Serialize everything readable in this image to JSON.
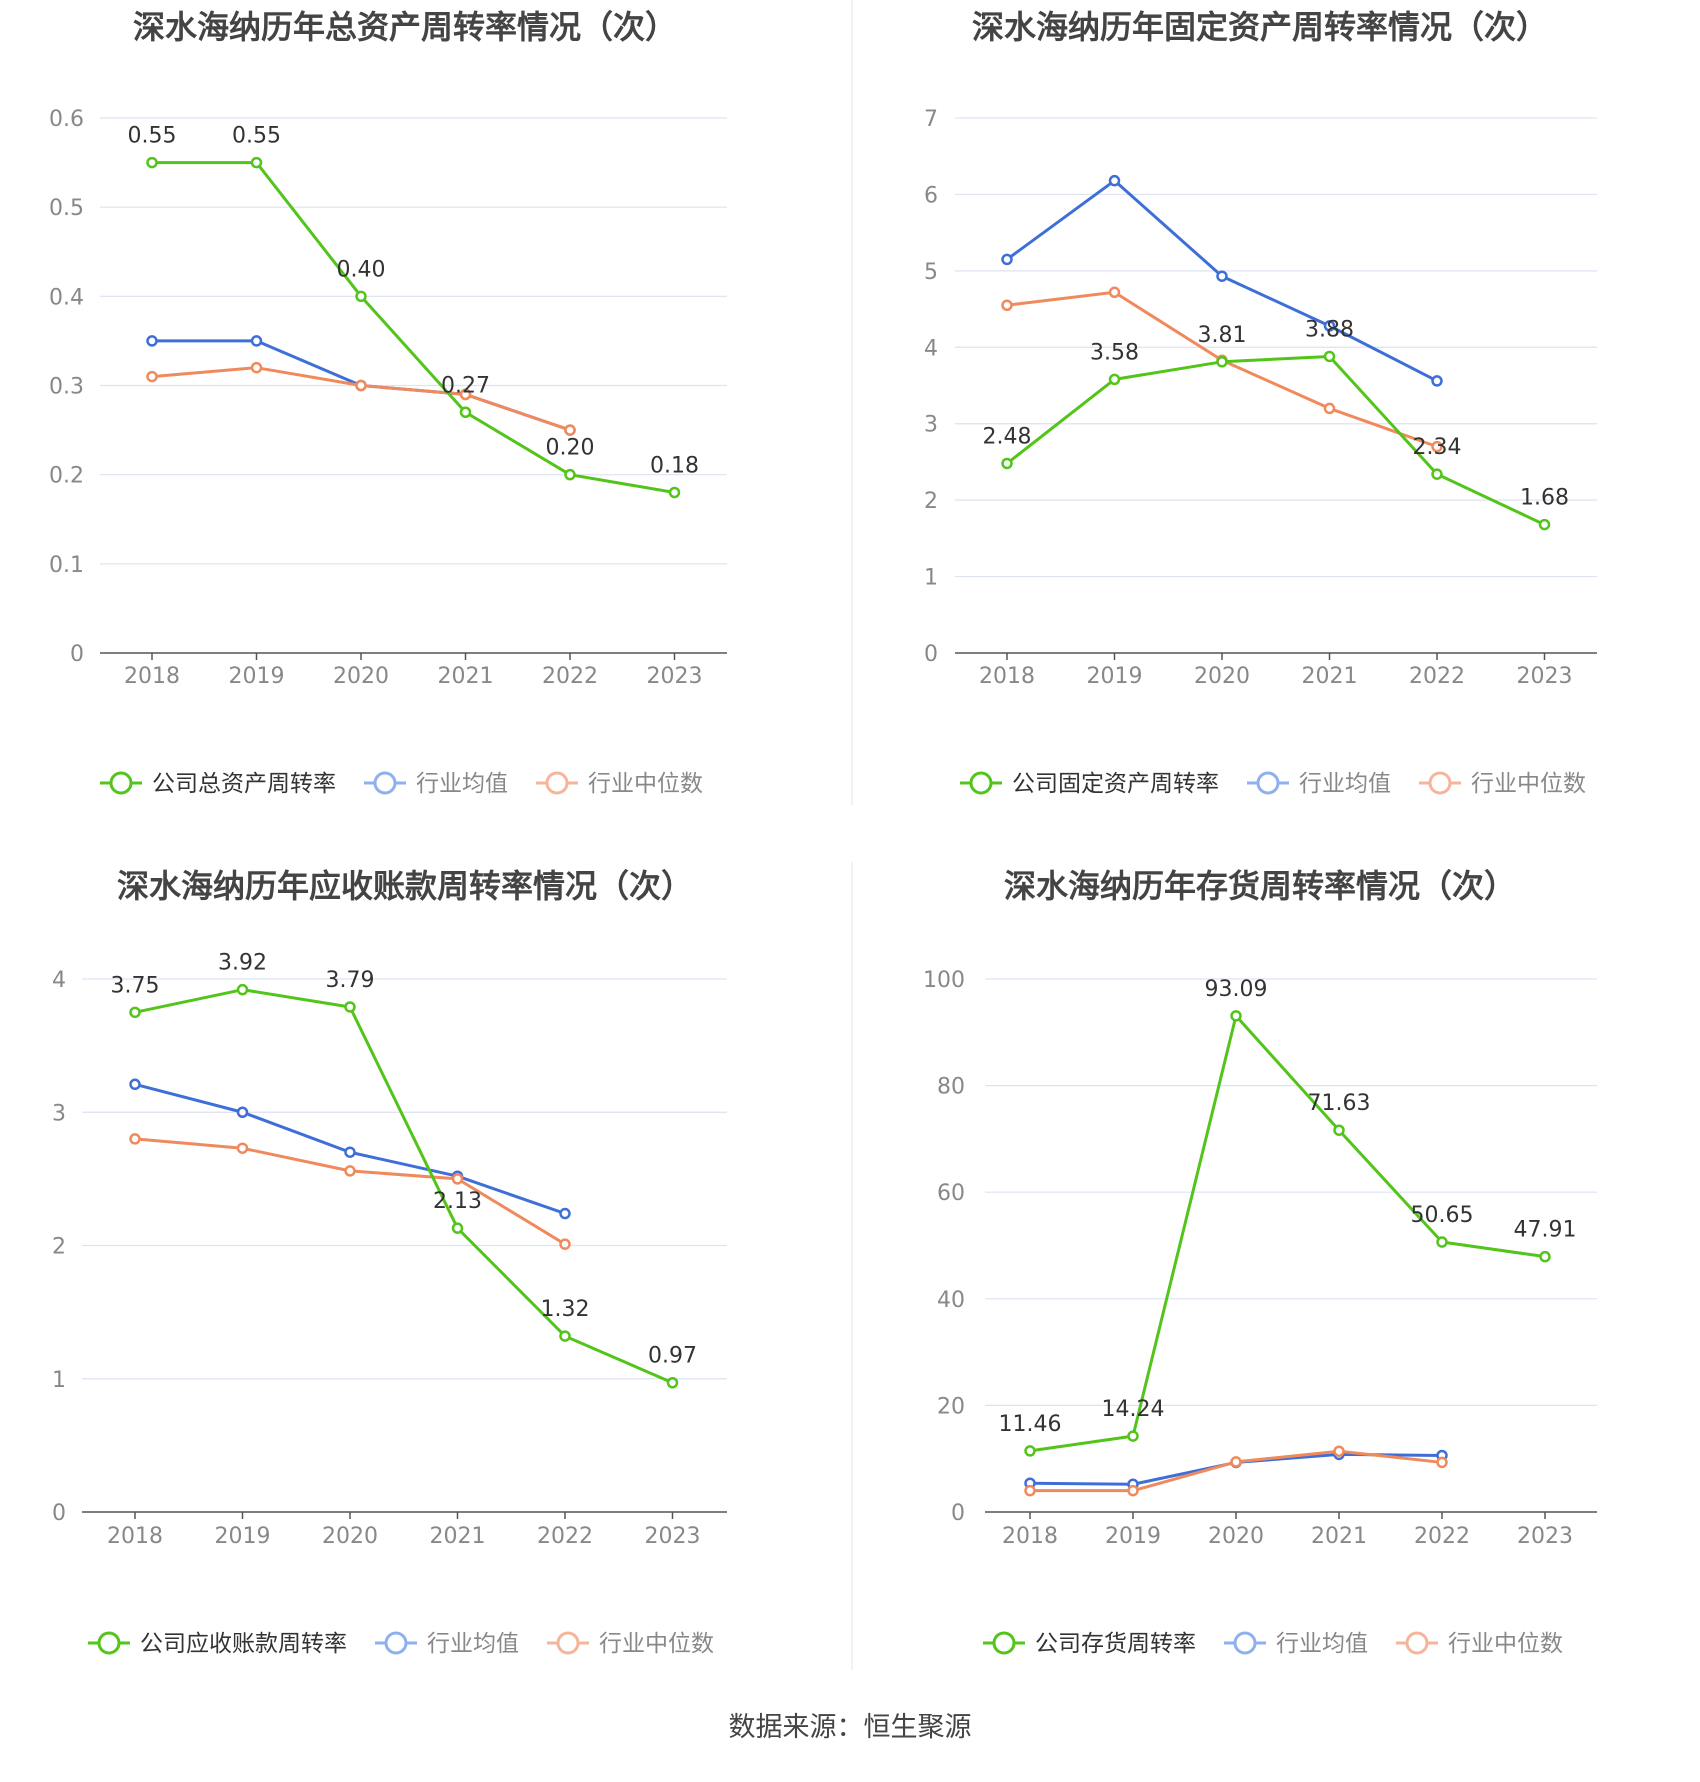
{
  "source": {
    "label": "数据来源：",
    "value": "恒生聚源"
  },
  "legend_labels": {
    "avg": "行业均值",
    "median": "行业中位数"
  },
  "colors": {
    "company": "#52c41a",
    "avg": "#3e6fd8",
    "median": "#f08a5d",
    "legend_avg": "#8fb0ee",
    "legend_median": "#f6b59a",
    "grid": "#dde3f0",
    "axis": "#555555",
    "tick": "#888888"
  },
  "chart_data": [
    {
      "type": "line",
      "title": "深水海纳历年总资产周转率情况（次）",
      "categories": [
        "2018",
        "2019",
        "2020",
        "2021",
        "2022",
        "2023"
      ],
      "ylim": [
        0,
        0.6
      ],
      "yticks": [
        0,
        0.1,
        0.2,
        0.3,
        0.4,
        0.5,
        0.6
      ],
      "ytick_labels": [
        "0",
        "0.1",
        "0.2",
        "0.3",
        "0.4",
        "0.5",
        "0.6"
      ],
      "series": [
        {
          "name": "公司总资产周转率",
          "role": "company",
          "values": [
            0.55,
            0.55,
            0.4,
            0.27,
            0.2,
            0.18
          ],
          "labels": [
            "0.55",
            "0.55",
            "0.40",
            "0.27",
            "0.20",
            "0.18"
          ]
        },
        {
          "name": "行业均值",
          "role": "avg",
          "values": [
            0.35,
            0.35,
            0.3,
            0.29,
            0.25,
            null
          ]
        },
        {
          "name": "行业中位数",
          "role": "median",
          "values": [
            0.31,
            0.32,
            0.3,
            0.29,
            0.25,
            null
          ]
        }
      ]
    },
    {
      "type": "line",
      "title": "深水海纳历年固定资产周转率情况（次）",
      "categories": [
        "2018",
        "2019",
        "2020",
        "2021",
        "2022",
        "2023"
      ],
      "ylim": [
        0,
        7
      ],
      "yticks": [
        0,
        1,
        2,
        3,
        4,
        5,
        6,
        7
      ],
      "ytick_labels": [
        "0",
        "1",
        "2",
        "3",
        "4",
        "5",
        "6",
        "7"
      ],
      "series": [
        {
          "name": "公司固定资产周转率",
          "role": "company",
          "values": [
            2.48,
            3.58,
            3.81,
            3.88,
            2.34,
            1.68
          ],
          "labels": [
            "2.48",
            "3.58",
            "3.81",
            "3.88",
            "2.34",
            "1.68"
          ]
        },
        {
          "name": "行业均值",
          "role": "avg",
          "values": [
            5.15,
            6.18,
            4.93,
            4.28,
            3.56,
            null
          ]
        },
        {
          "name": "行业中位数",
          "role": "median",
          "values": [
            4.55,
            4.72,
            3.83,
            3.2,
            2.7,
            null
          ]
        }
      ]
    },
    {
      "type": "line",
      "title": "深水海纳历年应收账款周转率情况（次）",
      "categories": [
        "2018",
        "2019",
        "2020",
        "2021",
        "2022",
        "2023"
      ],
      "ylim": [
        0,
        4
      ],
      "yticks": [
        0,
        1,
        2,
        3,
        4
      ],
      "ytick_labels": [
        "0",
        "1",
        "2",
        "3",
        "4"
      ],
      "series": [
        {
          "name": "公司应收账款周转率",
          "role": "company",
          "values": [
            3.75,
            3.92,
            3.79,
            2.13,
            1.32,
            0.97
          ],
          "labels": [
            "3.75",
            "3.92",
            "3.79",
            "2.13",
            "1.32",
            "0.97"
          ]
        },
        {
          "name": "行业均值",
          "role": "avg",
          "values": [
            3.21,
            3.0,
            2.7,
            2.52,
            2.24,
            null
          ]
        },
        {
          "name": "行业中位数",
          "role": "median",
          "values": [
            2.8,
            2.73,
            2.56,
            2.5,
            2.01,
            null
          ]
        }
      ]
    },
    {
      "type": "line",
      "title": "深水海纳历年存货周转率情况（次）",
      "categories": [
        "2018",
        "2019",
        "2020",
        "2021",
        "2022",
        "2023"
      ],
      "ylim": [
        0,
        100
      ],
      "yticks": [
        0,
        20,
        40,
        60,
        80,
        100
      ],
      "ytick_labels": [
        "0",
        "20",
        "40",
        "60",
        "80",
        "100"
      ],
      "series": [
        {
          "name": "公司存货周转率",
          "role": "company",
          "values": [
            11.46,
            14.24,
            93.09,
            71.63,
            50.65,
            47.91
          ],
          "labels": [
            "11.46",
            "14.24",
            "93.09",
            "71.63",
            "50.65",
            "47.91"
          ]
        },
        {
          "name": "行业均值",
          "role": "avg",
          "values": [
            5.4,
            5.2,
            9.3,
            10.8,
            10.6,
            null
          ]
        },
        {
          "name": "行业中位数",
          "role": "median",
          "values": [
            4.0,
            4.0,
            9.4,
            11.4,
            9.3,
            null
          ]
        }
      ]
    }
  ]
}
